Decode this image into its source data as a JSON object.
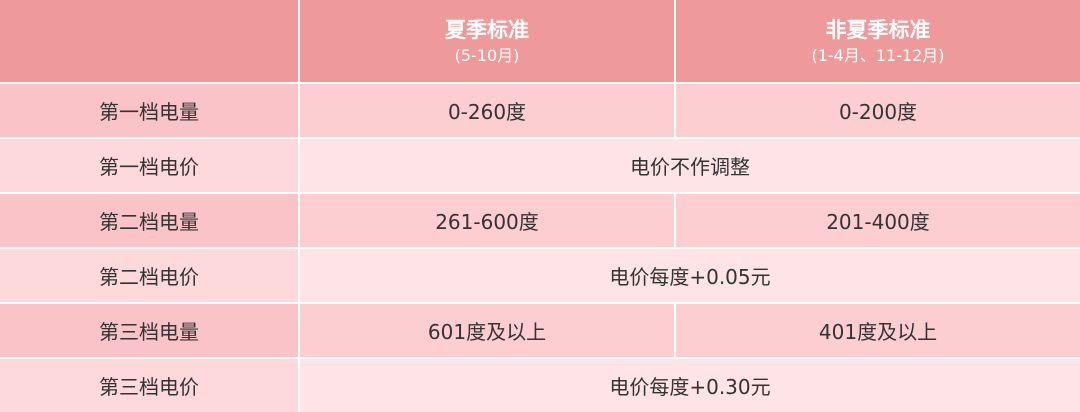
{
  "table": {
    "header": [
      {
        "title": "夏季标准",
        "subtitle": "(5-10月)"
      },
      {
        "title": "非夏季标准",
        "subtitle": "(1-4月、11-12月)"
      }
    ],
    "rows": [
      [
        "第一档电量",
        "0-260度",
        "0-200度"
      ],
      [
        "第一档电价",
        "电价不作调整"
      ],
      [
        "第二档电量",
        "261-600度",
        "201-400度"
      ],
      [
        "第二档电价",
        "电价每度+0.05元"
      ],
      [
        "第三档电量",
        "601度及以上",
        "401度及以上"
      ],
      [
        "第三档电价",
        "电价每度+0.30元"
      ]
    ]
  }
}
